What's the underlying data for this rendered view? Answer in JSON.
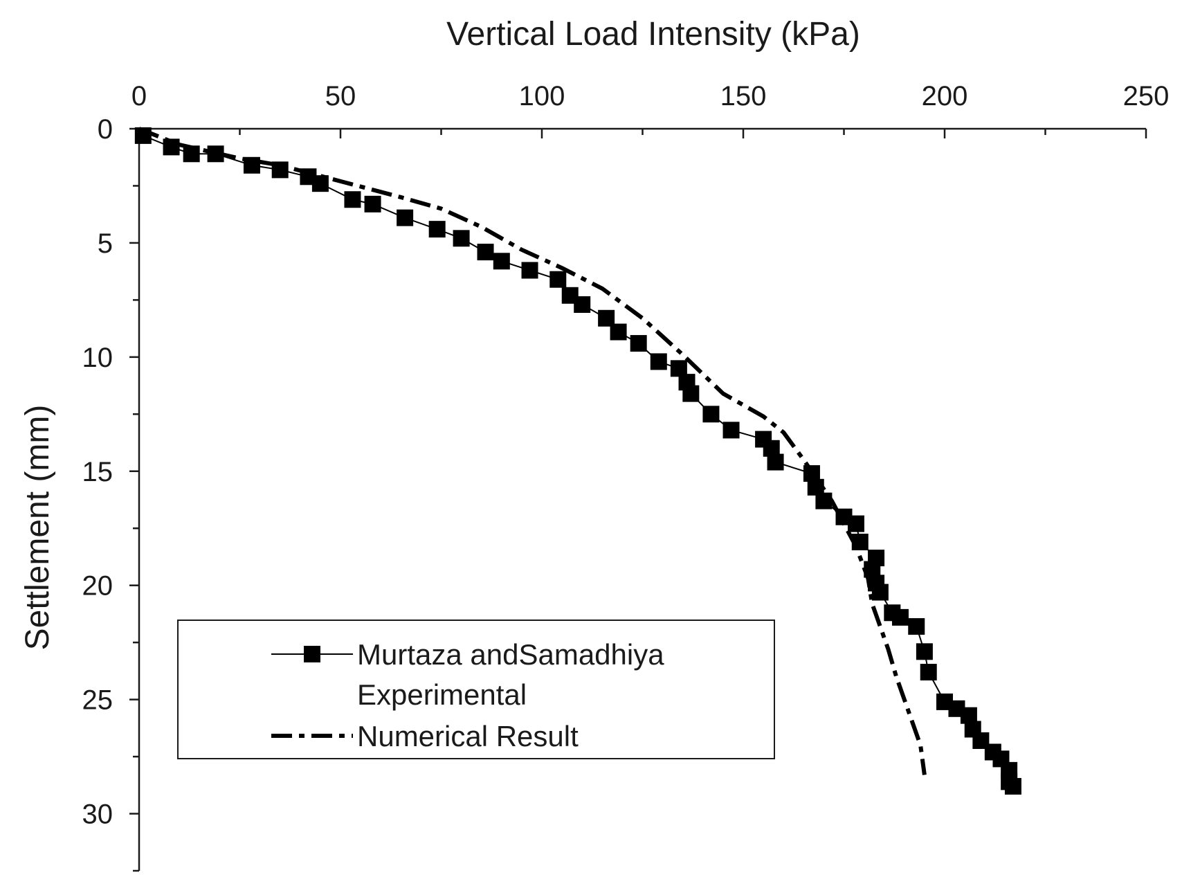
{
  "chart_data": {
    "type": "line",
    "title": "",
    "xlabel": "Vertical Load Intensity (kPa)",
    "ylabel": "Settlement (mm)",
    "xlim": [
      0,
      250
    ],
    "ylim": [
      0,
      32.5
    ],
    "y_inverted": true,
    "x_axis_position": "top",
    "x_ticks": [
      "0",
      "50",
      "100",
      "150",
      "200",
      "250"
    ],
    "x_tick_values": [
      0,
      50,
      100,
      150,
      200,
      250
    ],
    "y_ticks": [
      "0",
      "5",
      "10",
      "15",
      "20",
      "25",
      "30"
    ],
    "y_tick_values": [
      0,
      5,
      10,
      15,
      20,
      25,
      30
    ],
    "grid": false,
    "legend": {
      "position": "bottom-left",
      "entries": [
        {
          "line1": "Murtaza andSamadhiya",
          "line2": "Experimental"
        },
        {
          "line1": "Numerical Result",
          "line2": ""
        }
      ]
    },
    "series": [
      {
        "name": "Murtaza andSamadhiya Experimental",
        "style": "solid-square-markers",
        "color": "#000000",
        "points": [
          [
            1,
            0.3
          ],
          [
            8,
            0.8
          ],
          [
            13,
            1.1
          ],
          [
            19,
            1.1
          ],
          [
            28,
            1.6
          ],
          [
            35,
            1.8
          ],
          [
            42,
            2.1
          ],
          [
            45,
            2.4
          ],
          [
            53,
            3.1
          ],
          [
            58,
            3.3
          ],
          [
            66,
            3.9
          ],
          [
            74,
            4.4
          ],
          [
            80,
            4.8
          ],
          [
            86,
            5.4
          ],
          [
            90,
            5.8
          ],
          [
            97,
            6.2
          ],
          [
            104,
            6.6
          ],
          [
            107,
            7.3
          ],
          [
            110,
            7.7
          ],
          [
            116,
            8.3
          ],
          [
            119,
            8.9
          ],
          [
            124,
            9.4
          ],
          [
            129,
            10.2
          ],
          [
            134,
            10.5
          ],
          [
            136,
            11.1
          ],
          [
            137,
            11.6
          ],
          [
            142,
            12.5
          ],
          [
            147,
            13.2
          ],
          [
            155,
            13.6
          ],
          [
            157,
            14.0
          ],
          [
            158,
            14.6
          ],
          [
            167,
            15.1
          ],
          [
            168,
            15.7
          ],
          [
            170,
            16.3
          ],
          [
            175,
            17.0
          ],
          [
            178,
            17.3
          ],
          [
            179,
            18.1
          ],
          [
            183,
            18.8
          ],
          [
            182,
            19.3
          ],
          [
            183,
            19.9
          ],
          [
            184,
            20.3
          ],
          [
            187,
            21.2
          ],
          [
            189,
            21.4
          ],
          [
            193,
            21.8
          ],
          [
            195,
            22.9
          ],
          [
            196,
            23.8
          ],
          [
            200,
            25.1
          ],
          [
            203,
            25.4
          ],
          [
            206,
            25.7
          ],
          [
            207,
            26.3
          ],
          [
            209,
            26.8
          ],
          [
            212,
            27.3
          ],
          [
            214,
            27.6
          ],
          [
            216,
            28.1
          ],
          [
            216,
            28.6
          ],
          [
            217,
            28.8
          ]
        ]
      },
      {
        "name": "Numerical Result",
        "style": "dash-dot",
        "color": "#000000",
        "points": [
          [
            0,
            0
          ],
          [
            10,
            0.7
          ],
          [
            25,
            1.3
          ],
          [
            35,
            1.6
          ],
          [
            50,
            2.3
          ],
          [
            65,
            3.0
          ],
          [
            75,
            3.5
          ],
          [
            85,
            4.3
          ],
          [
            95,
            5.3
          ],
          [
            105,
            6.1
          ],
          [
            115,
            7.0
          ],
          [
            125,
            8.3
          ],
          [
            135,
            9.9
          ],
          [
            145,
            11.6
          ],
          [
            155,
            12.6
          ],
          [
            160,
            13.3
          ],
          [
            165,
            14.5
          ],
          [
            172,
            16.3
          ],
          [
            178,
            18.3
          ],
          [
            181,
            19.7
          ],
          [
            182,
            20.8
          ],
          [
            184,
            21.8
          ],
          [
            186,
            22.8
          ],
          [
            188,
            24.0
          ],
          [
            190,
            25.0
          ],
          [
            192,
            26.0
          ],
          [
            194,
            27.0
          ],
          [
            195,
            28.3
          ]
        ]
      }
    ]
  }
}
